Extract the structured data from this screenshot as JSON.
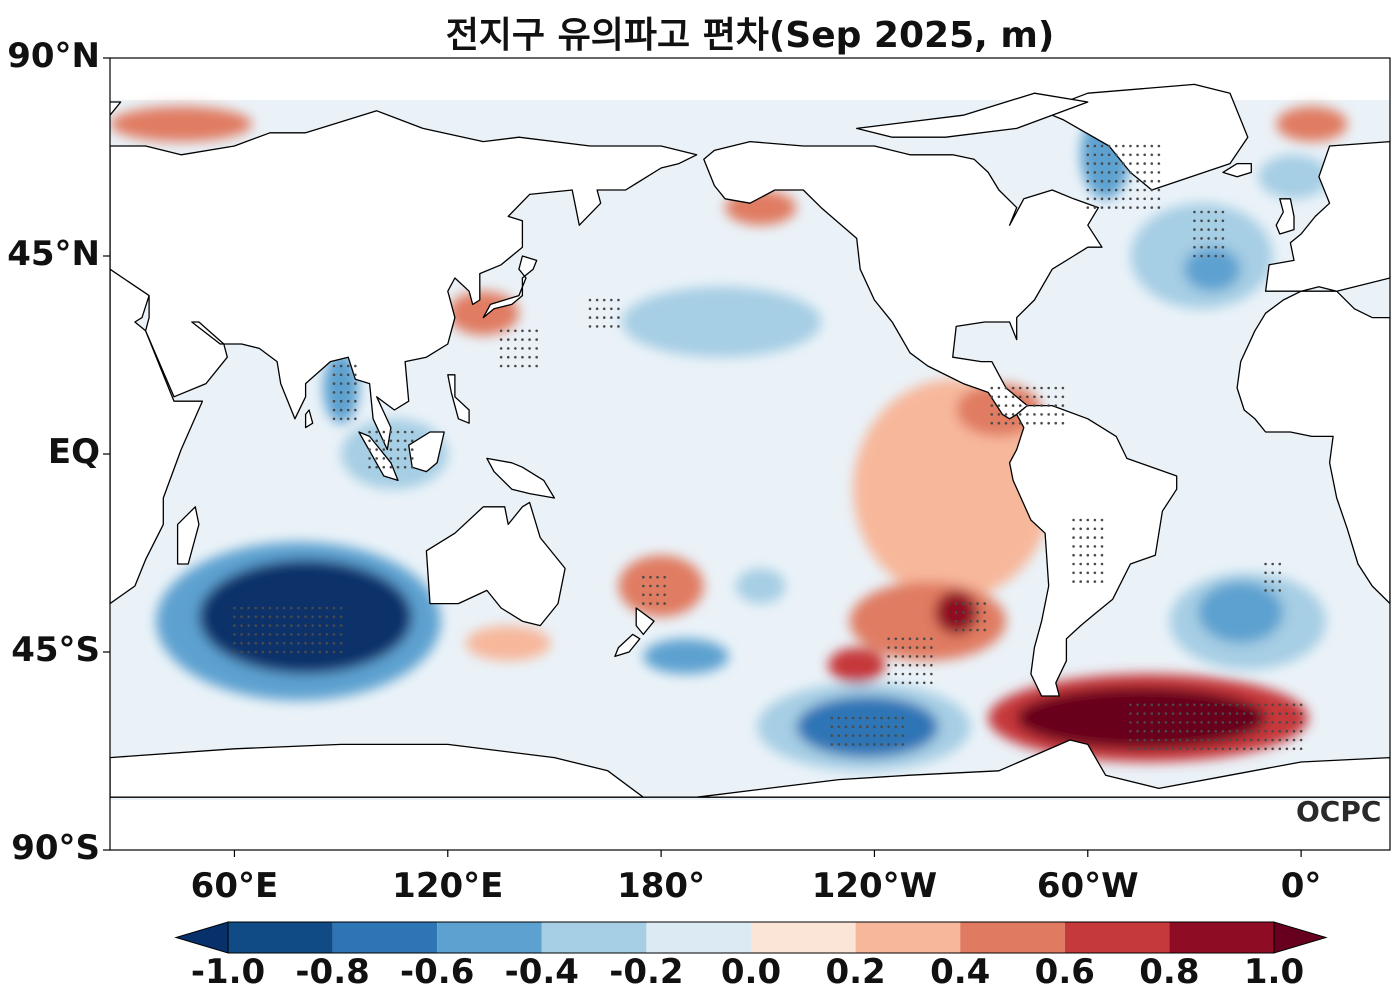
{
  "title": "전지구 유의파고 편차(Sep 2025, m)",
  "watermark": "OCPC",
  "map": {
    "projection": "equirectangular",
    "lon_range": [
      25,
      385
    ],
    "lat_range": [
      -90,
      90
    ],
    "lat_ticks": [
      {
        "lat": 90,
        "label": "90°N"
      },
      {
        "lat": 45,
        "label": "45°N"
      },
      {
        "lat": 0,
        "label": "EQ"
      },
      {
        "lat": -45,
        "label": "45°S"
      },
      {
        "lat": -90,
        "label": "90°S"
      }
    ],
    "lon_ticks": [
      {
        "lon": 60,
        "label": "60°E"
      },
      {
        "lon": 120,
        "label": "120°E"
      },
      {
        "lon": 180,
        "label": "180°"
      },
      {
        "lon": 240,
        "label": "120°W"
      },
      {
        "lon": 300,
        "label": "60°W"
      },
      {
        "lon": 360,
        "label": "0°"
      }
    ]
  },
  "colorbar": {
    "extend": "both",
    "labels": [
      "-1.0",
      "-0.8",
      "-0.6",
      "-0.4",
      "-0.2",
      "0.0",
      "0.2",
      "0.4",
      "0.6",
      "0.8",
      "1.0"
    ],
    "colors": [
      "#08306b",
      "#2166ac",
      "#4393c3",
      "#92c5de",
      "#d1e5f0",
      "#f7f7f7",
      "#fddbc7",
      "#f4a582",
      "#d6604d",
      "#b2182b",
      "#67001f"
    ],
    "bin_colors": [
      "#114b85",
      "#2e75b6",
      "#5da1d0",
      "#a6cee4",
      "#dceaf3",
      "#fbe5d6",
      "#f7b79b",
      "#e07b62",
      "#c6393a",
      "#8e0c24"
    ]
  },
  "anomaly_regions": [
    {
      "name": "south-indian-ocean",
      "lon": 80,
      "lat": -37,
      "rx": 30,
      "ry": 13,
      "value": -1.0
    },
    {
      "name": "south-indian-ocean-outer",
      "lon": 78,
      "lat": -38,
      "rx": 40,
      "ry": 18,
      "value": -0.5
    },
    {
      "name": "bay-of-bengal",
      "lon": 90,
      "lat": 15,
      "rx": 5,
      "ry": 8,
      "value": -0.6
    },
    {
      "name": "indonesia-seas",
      "lon": 105,
      "lat": 0,
      "rx": 15,
      "ry": 8,
      "value": -0.3
    },
    {
      "name": "south-pacific-west",
      "lon": 238,
      "lat": -62,
      "rx": 20,
      "ry": 7,
      "value": -0.8
    },
    {
      "name": "south-pacific-west-outer",
      "lon": 237,
      "lat": -62,
      "rx": 30,
      "ry": 10,
      "value": -0.4
    },
    {
      "name": "tasman-south",
      "lon": 187,
      "lat": -46,
      "rx": 12,
      "ry": 4,
      "value": -0.5
    },
    {
      "name": "south-pacific-central",
      "lon": 208,
      "lat": -30,
      "rx": 7,
      "ry": 4,
      "value": -0.4
    },
    {
      "name": "north-pacific-central",
      "lon": 197,
      "lat": 30,
      "rx": 28,
      "ry": 8,
      "value": -0.3
    },
    {
      "name": "labrador-sea",
      "lon": 305,
      "lat": 68,
      "rx": 7,
      "ry": 10,
      "value": -0.5
    },
    {
      "name": "north-atlantic",
      "lon": 335,
      "lat": 42,
      "rx": 8,
      "ry": 5,
      "value": -0.6
    },
    {
      "name": "north-atlantic-outer",
      "lon": 332,
      "lat": 45,
      "rx": 20,
      "ry": 12,
      "value": -0.3
    },
    {
      "name": "south-atlantic",
      "lon": 343,
      "lat": -36,
      "rx": 12,
      "ry": 7,
      "value": -0.6
    },
    {
      "name": "south-atlantic-outer",
      "lon": 345,
      "lat": -38,
      "rx": 22,
      "ry": 11,
      "value": -0.3
    },
    {
      "name": "nordic-seas",
      "lon": 358,
      "lat": 63,
      "rx": 10,
      "ry": 5,
      "value": -0.4
    },
    {
      "name": "east-pacific",
      "lon": 262,
      "lat": -8,
      "rx": 28,
      "ry": 25,
      "value": 0.2
    },
    {
      "name": "pacific-sw-of-chile",
      "lon": 255,
      "lat": -38,
      "rx": 22,
      "ry": 9,
      "value": 0.5
    },
    {
      "name": "pacific-sw-core",
      "lon": 263,
      "lat": -36,
      "rx": 6,
      "ry": 5,
      "value": 0.8
    },
    {
      "name": "pacific-sw-core-2",
      "lon": 235,
      "lat": -48,
      "rx": 8,
      "ry": 4,
      "value": 0.7
    },
    {
      "name": "drake-passage",
      "lon": 315,
      "lat": -60,
      "rx": 35,
      "ry": 7,
      "value": 1.0
    },
    {
      "name": "drake-passage-outer",
      "lon": 317,
      "lat": -60,
      "rx": 45,
      "ry": 10,
      "value": 0.6
    },
    {
      "name": "east-tropical-pacific",
      "lon": 275,
      "lat": 10,
      "rx": 12,
      "ry": 6,
      "value": 0.4
    },
    {
      "name": "tasman-sea",
      "lon": 180,
      "lat": -30,
      "rx": 12,
      "ry": 7,
      "value": 0.4
    },
    {
      "name": "south-of-australia",
      "lon": 137,
      "lat": -43,
      "rx": 12,
      "ry": 4,
      "value": 0.3
    },
    {
      "name": "east-china-sea",
      "lon": 130,
      "lat": 32,
      "rx": 10,
      "ry": 5,
      "value": 0.4
    },
    {
      "name": "gulf-of-alaska",
      "lon": 208,
      "lat": 56,
      "rx": 10,
      "ry": 4,
      "value": 0.4
    },
    {
      "name": "barents-sea",
      "lon": 45,
      "lat": 75,
      "rx": 20,
      "ry": 4,
      "value": 0.4
    },
    {
      "name": "arctic-atlantic",
      "lon": 363,
      "lat": 75,
      "rx": 10,
      "ry": 4,
      "value": 0.4
    }
  ]
}
